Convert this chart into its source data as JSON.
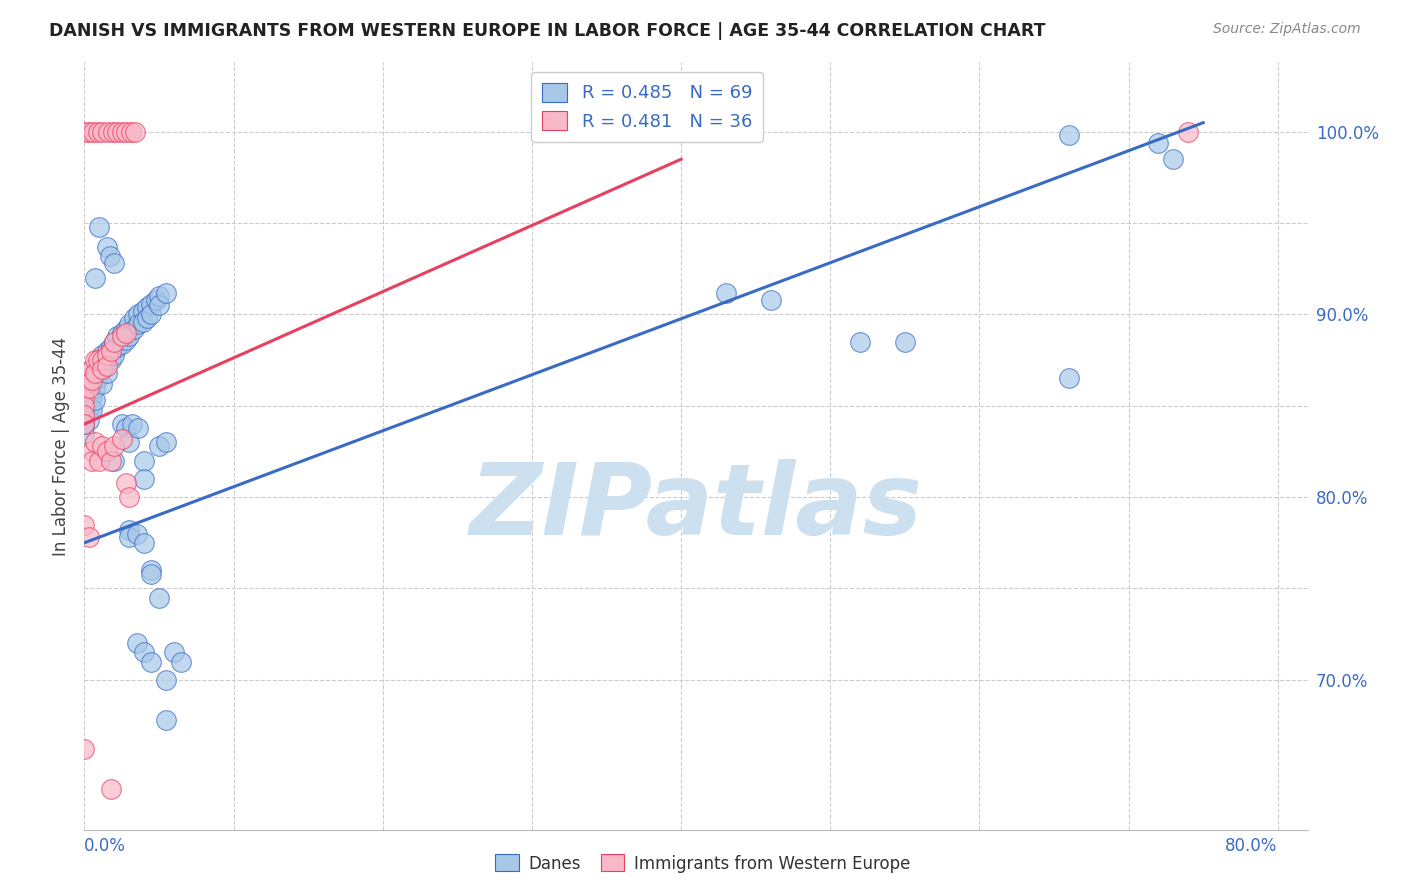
{
  "title": "DANISH VS IMMIGRANTS FROM WESTERN EUROPE IN LABOR FORCE | AGE 35-44 CORRELATION CHART",
  "source": "Source: ZipAtlas.com",
  "ylabel": "In Labor Force | Age 35-44",
  "legend_blue": {
    "R": 0.485,
    "N": 69,
    "label": "Danes"
  },
  "legend_pink": {
    "R": 0.481,
    "N": 36,
    "label": "Immigrants from Western Europe"
  },
  "blue_color": "#a8c8e8",
  "pink_color": "#f8b8c8",
  "blue_line_color": "#3a6bc4",
  "pink_line_color": "#e84060",
  "blue_scatter": [
    [
      0.0,
      0.86
    ],
    [
      0.0,
      0.85
    ],
    [
      0.0,
      0.84
    ],
    [
      0.0,
      0.835
    ],
    [
      0.003,
      0.862
    ],
    [
      0.003,
      0.855
    ],
    [
      0.003,
      0.848
    ],
    [
      0.003,
      0.842
    ],
    [
      0.005,
      0.87
    ],
    [
      0.005,
      0.862
    ],
    [
      0.005,
      0.855
    ],
    [
      0.005,
      0.848
    ],
    [
      0.007,
      0.868
    ],
    [
      0.007,
      0.86
    ],
    [
      0.007,
      0.853
    ],
    [
      0.009,
      0.872
    ],
    [
      0.009,
      0.865
    ],
    [
      0.012,
      0.878
    ],
    [
      0.012,
      0.87
    ],
    [
      0.012,
      0.862
    ],
    [
      0.015,
      0.88
    ],
    [
      0.015,
      0.875
    ],
    [
      0.015,
      0.868
    ],
    [
      0.018,
      0.882
    ],
    [
      0.018,
      0.875
    ],
    [
      0.02,
      0.885
    ],
    [
      0.02,
      0.878
    ],
    [
      0.022,
      0.888
    ],
    [
      0.022,
      0.882
    ],
    [
      0.025,
      0.89
    ],
    [
      0.025,
      0.884
    ],
    [
      0.028,
      0.892
    ],
    [
      0.028,
      0.886
    ],
    [
      0.03,
      0.895
    ],
    [
      0.03,
      0.888
    ],
    [
      0.033,
      0.898
    ],
    [
      0.033,
      0.892
    ],
    [
      0.036,
      0.9
    ],
    [
      0.036,
      0.895
    ],
    [
      0.039,
      0.902
    ],
    [
      0.039,
      0.896
    ],
    [
      0.042,
      0.904
    ],
    [
      0.042,
      0.898
    ],
    [
      0.045,
      0.906
    ],
    [
      0.045,
      0.9
    ],
    [
      0.048,
      0.908
    ],
    [
      0.05,
      0.91
    ],
    [
      0.05,
      0.905
    ],
    [
      0.055,
      0.912
    ],
    [
      0.0,
      0.84
    ],
    [
      0.007,
      0.92
    ],
    [
      0.01,
      0.948
    ],
    [
      0.015,
      0.937
    ],
    [
      0.017,
      0.932
    ],
    [
      0.02,
      0.928
    ],
    [
      0.02,
      0.82
    ],
    [
      0.025,
      0.84
    ],
    [
      0.028,
      0.838
    ],
    [
      0.03,
      0.83
    ],
    [
      0.032,
      0.84
    ],
    [
      0.036,
      0.838
    ],
    [
      0.04,
      0.82
    ],
    [
      0.04,
      0.81
    ],
    [
      0.05,
      0.828
    ],
    [
      0.055,
      0.83
    ],
    [
      0.03,
      0.782
    ],
    [
      0.03,
      0.778
    ],
    [
      0.035,
      0.78
    ],
    [
      0.04,
      0.775
    ],
    [
      0.045,
      0.76
    ],
    [
      0.045,
      0.758
    ],
    [
      0.05,
      0.745
    ],
    [
      0.035,
      0.72
    ],
    [
      0.04,
      0.715
    ],
    [
      0.045,
      0.71
    ],
    [
      0.055,
      0.7
    ],
    [
      0.06,
      0.715
    ],
    [
      0.055,
      0.678
    ],
    [
      0.065,
      0.71
    ],
    [
      0.66,
      0.998
    ],
    [
      0.72,
      0.994
    ],
    [
      0.73,
      0.985
    ],
    [
      0.43,
      0.912
    ],
    [
      0.46,
      0.908
    ],
    [
      0.52,
      0.885
    ],
    [
      0.55,
      0.885
    ],
    [
      0.66,
      0.865
    ]
  ],
  "pink_scatter": [
    [
      0.0,
      0.862
    ],
    [
      0.0,
      0.858
    ],
    [
      0.0,
      0.854
    ],
    [
      0.0,
      0.85
    ],
    [
      0.0,
      0.845
    ],
    [
      0.0,
      0.84
    ],
    [
      0.003,
      0.865
    ],
    [
      0.003,
      0.86
    ],
    [
      0.005,
      0.87
    ],
    [
      0.005,
      0.864
    ],
    [
      0.007,
      0.875
    ],
    [
      0.007,
      0.868
    ],
    [
      0.009,
      0.875
    ],
    [
      0.012,
      0.875
    ],
    [
      0.012,
      0.87
    ],
    [
      0.015,
      0.878
    ],
    [
      0.015,
      0.872
    ],
    [
      0.018,
      0.88
    ],
    [
      0.02,
      0.885
    ],
    [
      0.025,
      0.888
    ],
    [
      0.028,
      0.89
    ],
    [
      0.005,
      0.825
    ],
    [
      0.005,
      0.82
    ],
    [
      0.007,
      0.83
    ],
    [
      0.01,
      0.82
    ],
    [
      0.012,
      0.828
    ],
    [
      0.015,
      0.825
    ],
    [
      0.018,
      0.82
    ],
    [
      0.02,
      0.828
    ],
    [
      0.025,
      0.832
    ],
    [
      0.028,
      0.808
    ],
    [
      0.03,
      0.8
    ],
    [
      0.0,
      0.785
    ],
    [
      0.003,
      0.778
    ],
    [
      0.0,
      0.662
    ],
    [
      0.018,
      0.64
    ],
    [
      0.74,
      1.0
    ],
    [
      0.0,
      1.0
    ],
    [
      0.003,
      1.0
    ],
    [
      0.006,
      1.0
    ],
    [
      0.009,
      1.0
    ],
    [
      0.012,
      1.0
    ],
    [
      0.016,
      1.0
    ],
    [
      0.019,
      1.0
    ],
    [
      0.022,
      1.0
    ],
    [
      0.025,
      1.0
    ],
    [
      0.028,
      1.0
    ],
    [
      0.031,
      1.0
    ],
    [
      0.034,
      1.0
    ]
  ],
  "blue_line": {
    "x0": 0.0,
    "y0": 0.775,
    "x1": 0.75,
    "y1": 1.005
  },
  "pink_line": {
    "x0": 0.0,
    "y0": 0.84,
    "x1": 0.4,
    "y1": 0.985
  },
  "xlim": [
    0.0,
    0.82
  ],
  "ylim": [
    0.618,
    1.038
  ],
  "x_ticks": [
    0.0,
    0.1,
    0.2,
    0.3,
    0.4,
    0.5,
    0.6,
    0.7,
    0.8
  ],
  "y_ticks_labeled": [
    0.7,
    0.8,
    0.9,
    1.0
  ],
  "y_tick_labels": [
    "70.0%",
    "80.0%",
    "90.0%",
    "100.0%"
  ],
  "y_gridlines": [
    0.7,
    0.75,
    0.8,
    0.85,
    0.9,
    0.95,
    1.0
  ],
  "background_color": "#ffffff",
  "watermark": "ZIPatlas",
  "watermark_color": "#cce0f0"
}
